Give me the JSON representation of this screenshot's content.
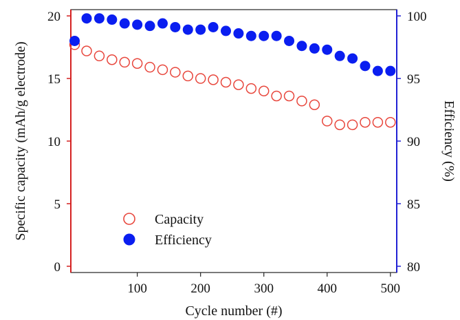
{
  "chart_data": {
    "type": "scatter",
    "xlabel": "Cycle number (#)",
    "ylabel_left": "Specific capacity (mAh/g electrode)",
    "ylabel_right": "Efficiency (%)",
    "xlim": [
      -5,
      510
    ],
    "ylim_left": [
      -0.5,
      20.5
    ],
    "ylim_right": [
      79.5,
      100.5
    ],
    "x_ticks": [
      100,
      200,
      300,
      400,
      500
    ],
    "y_left_ticks": [
      0,
      5,
      10,
      15,
      20
    ],
    "y_right_ticks": [
      80,
      85,
      90,
      95,
      100
    ],
    "grid": false,
    "legend_position": "lower-left",
    "colors": {
      "left_axis": "#d42020",
      "right_axis": "#2020d4",
      "capacity": "#e8463c",
      "efficiency": "#0a1ef0"
    },
    "series": [
      {
        "name": "Capacity",
        "axis": "left",
        "marker": "open-circle",
        "x": [
          1,
          20,
          40,
          60,
          80,
          100,
          120,
          140,
          160,
          180,
          200,
          220,
          240,
          260,
          280,
          300,
          320,
          340,
          360,
          380,
          400,
          420,
          440,
          460,
          480,
          500
        ],
        "y": [
          17.7,
          17.2,
          16.8,
          16.5,
          16.3,
          16.2,
          15.9,
          15.7,
          15.5,
          15.2,
          15.0,
          14.9,
          14.7,
          14.5,
          14.2,
          14.0,
          13.6,
          13.6,
          13.2,
          12.9,
          11.6,
          11.3,
          11.3,
          11.5,
          11.5,
          11.5
        ]
      },
      {
        "name": "Efficiency",
        "axis": "right",
        "marker": "filled-circle",
        "x": [
          1,
          20,
          40,
          60,
          80,
          100,
          120,
          140,
          160,
          180,
          200,
          220,
          240,
          260,
          280,
          300,
          320,
          340,
          360,
          380,
          400,
          420,
          440,
          460,
          480,
          500
        ],
        "y": [
          98.0,
          99.8,
          99.8,
          99.7,
          99.4,
          99.3,
          99.2,
          99.4,
          99.1,
          98.9,
          98.9,
          99.1,
          98.8,
          98.6,
          98.4,
          98.4,
          98.4,
          98.0,
          97.6,
          97.4,
          97.3,
          96.8,
          96.6,
          96.0,
          95.6,
          95.6
        ]
      }
    ]
  }
}
